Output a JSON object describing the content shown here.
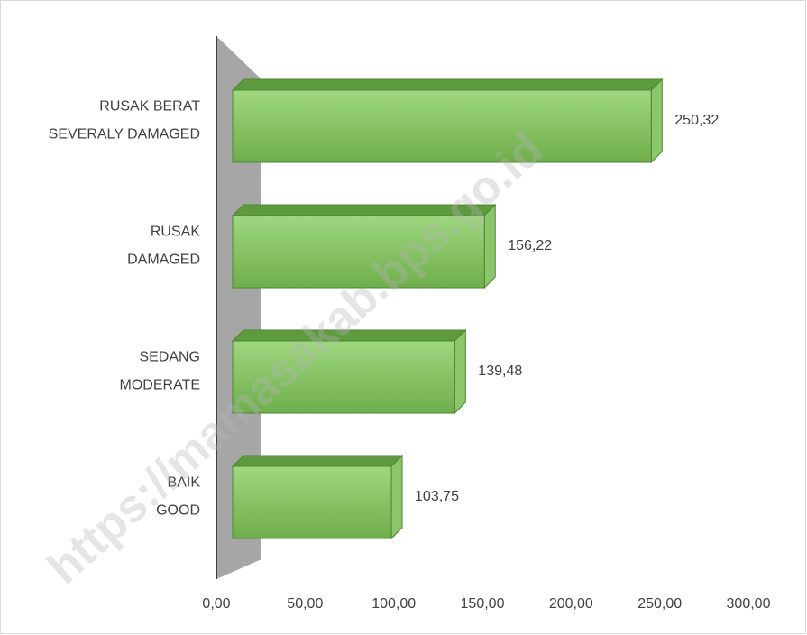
{
  "chart_data": {
    "type": "bar3d",
    "categories": [
      [
        "RUSAK BERAT",
        "SEVERALY DAMAGED"
      ],
      [
        "RUSAK",
        "DAMAGED"
      ],
      [
        "SEDANG",
        "MODERATE"
      ],
      [
        "BAIK",
        "GOOD"
      ]
    ],
    "values": [
      250.32,
      156.22,
      139.48,
      103.75
    ],
    "value_labels": [
      "250,32",
      "156,22",
      "139,48",
      "103,75"
    ],
    "color": "#7dc35b",
    "xlim": [
      0,
      300
    ],
    "xticks": [
      {
        "value": 0,
        "label": "0,00"
      },
      {
        "value": 50,
        "label": "50,00"
      },
      {
        "value": 100,
        "label": "100,00"
      },
      {
        "value": 150,
        "label": "150,00"
      },
      {
        "value": 200,
        "label": "200,00"
      },
      {
        "value": 250,
        "label": "250,00"
      },
      {
        "value": 300,
        "label": "300,00"
      }
    ],
    "watermark": "https://mamasakab.bps.go.id"
  }
}
